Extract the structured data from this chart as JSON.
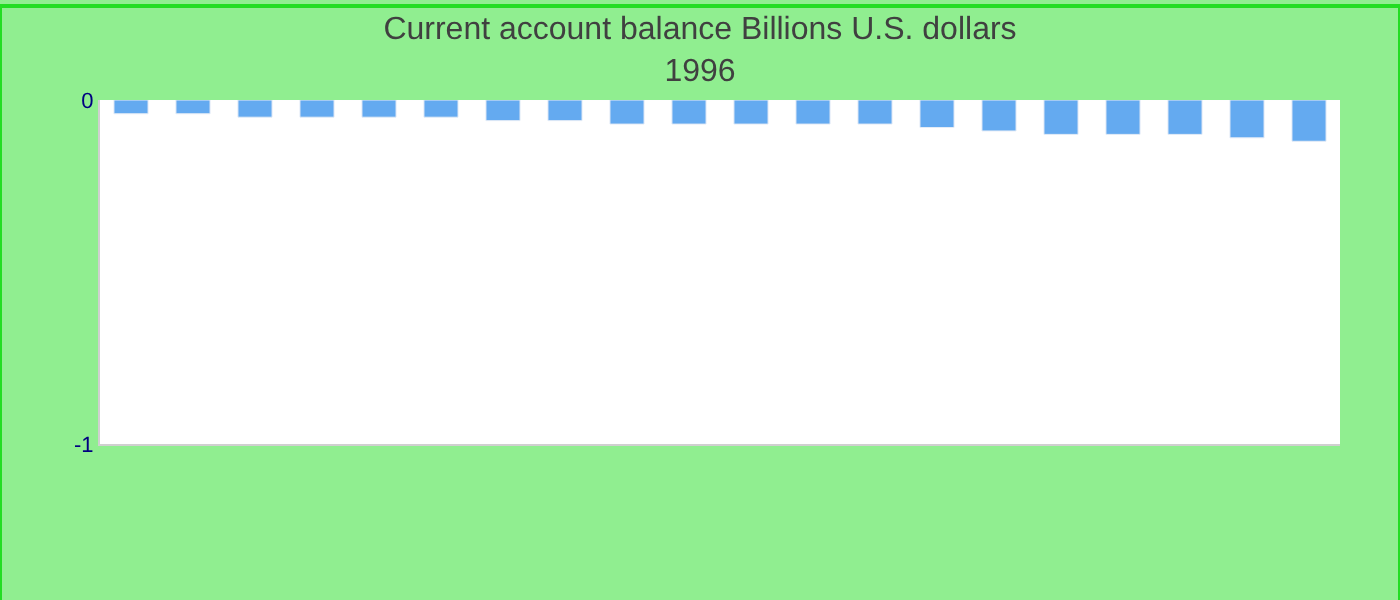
{
  "chart_data": {
    "type": "bar",
    "title": "Current account balance Billions U.S. dollars",
    "subtitle": "1996",
    "categories": [
      null,
      null,
      null,
      null,
      null,
      null,
      null,
      null,
      null,
      null,
      null,
      null,
      null,
      null,
      null,
      null,
      null,
      null,
      null,
      null
    ],
    "series": [
      {
        "color": "#64aaf0",
        "values": [
          -0.04,
          -0.04,
          -0.05,
          -0.05,
          -0.05,
          -0.05,
          -0.06,
          -0.06,
          -0.07,
          -0.07,
          -0.07,
          -0.07,
          -0.07,
          -0.08,
          -0.09,
          -0.1,
          -0.1,
          -0.1,
          -0.11,
          -0.12
        ]
      }
    ],
    "ylim": [
      -1,
      0
    ],
    "yticks": [
      -1,
      0
    ]
  }
}
